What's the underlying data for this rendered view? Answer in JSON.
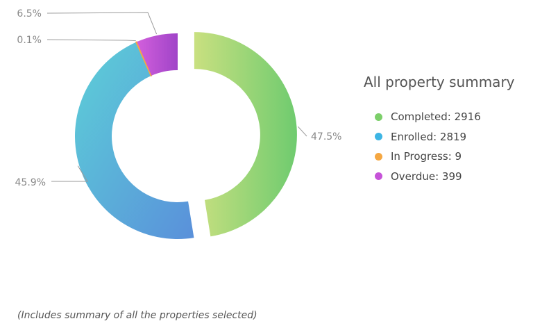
{
  "chart_data": {
    "type": "pie",
    "style": "donut",
    "title": "All property summary",
    "categories": [
      "Completed",
      "Enrolled",
      "In Progress",
      "Overdue"
    ],
    "values": [
      2916,
      2819,
      9,
      399
    ],
    "percent_labels": [
      "47.5%",
      "45.9%",
      "0.1%",
      "6.5%"
    ],
    "legend_labels": [
      "Completed: 2916",
      "Enrolled: 2819",
      "In Progress: 9",
      "Overdue: 399"
    ],
    "colors": [
      "#7ccf6a",
      "#3db5e4",
      "#f5a742",
      "#c653d8"
    ],
    "legend_placement": "right"
  },
  "footnote": "(Includes summary of all the properties selected)"
}
